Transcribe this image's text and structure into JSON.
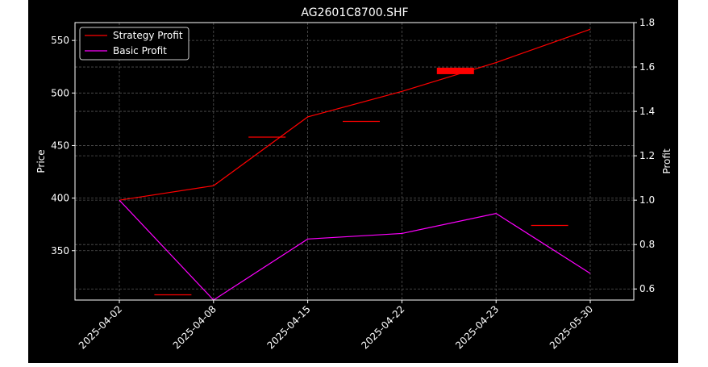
{
  "chart_data": {
    "type": "line",
    "title": "AG2601C8700.SHF",
    "xlabel": "",
    "ylabel": "Price",
    "y2label": "Profit",
    "categories": [
      "2025-04-02",
      "2025-04-08",
      "2025-04-15",
      "2025-04-22",
      "2025-04-23",
      "2025-05-30"
    ],
    "ylim": [
      303,
      567
    ],
    "y2lim": [
      0.55,
      1.8
    ],
    "yticks": [
      350,
      400,
      450,
      500,
      550
    ],
    "y2ticks": [
      0.6,
      0.8,
      1.0,
      1.2,
      1.4,
      1.6,
      1.8
    ],
    "grid": true,
    "legend_position": "top-left",
    "series": [
      {
        "name": "Strategy Profit",
        "axis": "right",
        "color": "#ff0000",
        "values": [
          1.0,
          1.065,
          1.375,
          1.49,
          1.62,
          1.77
        ]
      },
      {
        "name": "Basic Profit",
        "axis": "right",
        "color": "#ff00ff",
        "values": [
          1.0,
          0.55,
          0.825,
          0.85,
          0.94,
          0.67
        ]
      }
    ],
    "price_marks": {
      "color": "#ff0000",
      "description_positions": "between dates",
      "x": [
        1.0,
        2.0,
        3.0,
        4.0,
        5.0
      ],
      "values": [
        308,
        458,
        473,
        521,
        374
      ],
      "thick": [
        false,
        false,
        false,
        true,
        false
      ]
    }
  }
}
